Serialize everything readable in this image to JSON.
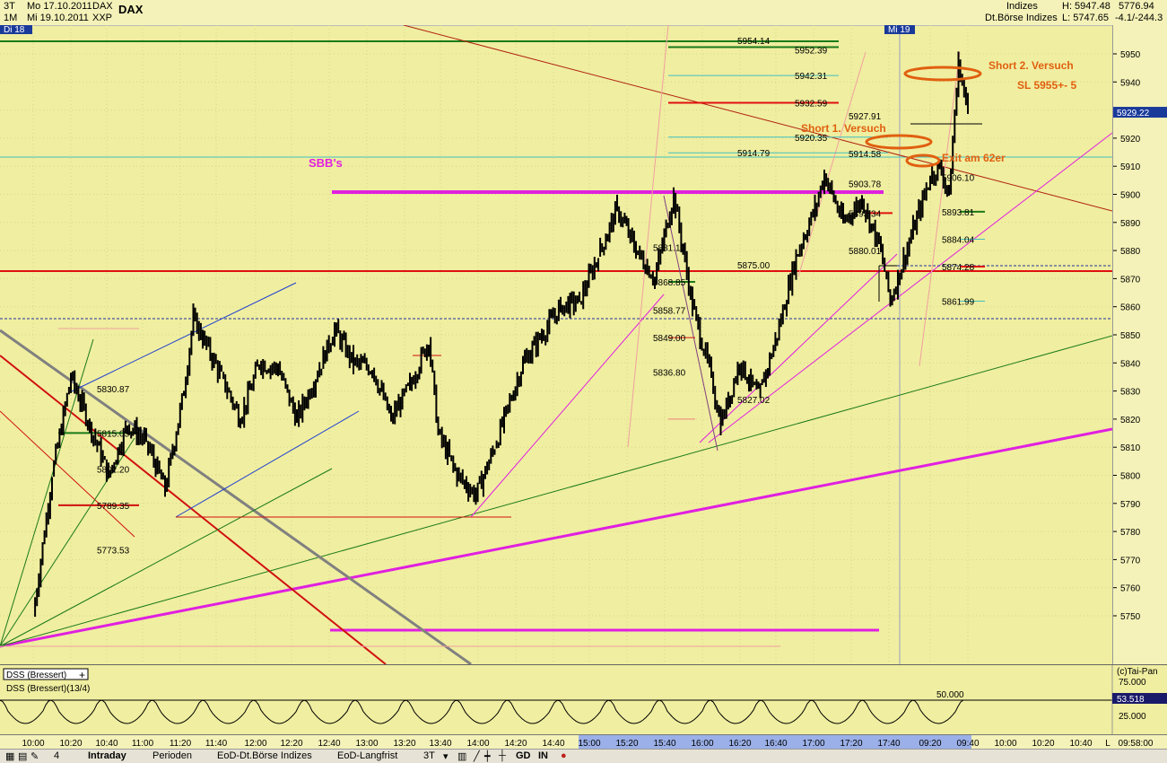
{
  "header": {
    "timeframe_1": "3T",
    "date_1": "Mo 17.10.2011",
    "symbol_1": "DAX",
    "title": "DAX",
    "timeframe_2": "1M",
    "date_2": "Mi 19.10.2011",
    "symbol_2": "XXP",
    "category": "Indizes",
    "exchange": "Dt.Börse Indizes",
    "high": "H: 5947.48",
    "low": "L: 5747.65",
    "last": "5776.94",
    "change": "-4.1/-244.3",
    "day_marker_1": "Di 18",
    "day_marker_2": "Mi 19"
  },
  "chart_data": {
    "type": "candlestick",
    "title": "DAX",
    "ylim": [
      5740,
      5960
    ],
    "y_ticks": [
      5750,
      5760,
      5770,
      5780,
      5790,
      5800,
      5810,
      5820,
      5830,
      5840,
      5850,
      5860,
      5870,
      5880,
      5890,
      5900,
      5910,
      5920,
      5930,
      5940,
      5950
    ],
    "current_price": "5929.22",
    "x_tick_labels": [
      "10:00",
      "10:20",
      "10:40",
      "11:00",
      "11:20",
      "11:40",
      "12:00",
      "12:20",
      "12:40",
      "13:00",
      "13:20",
      "13:40",
      "14:00",
      "14:20",
      "14:40",
      "15:00",
      "15:20",
      "15:40",
      "16:00",
      "16:20",
      "16:40",
      "17:00",
      "17:20",
      "17:40",
      "09:20",
      "09:40",
      "10:00",
      "10:20",
      "10:40",
      "L",
      "09:58:00"
    ],
    "price_path": [
      [
        "10:00",
        5750
      ],
      [
        "10:10",
        5800
      ],
      [
        "10:20",
        5835
      ],
      [
        "10:30",
        5818
      ],
      [
        "10:40",
        5800
      ],
      [
        "10:50",
        5818
      ],
      [
        "11:00",
        5812
      ],
      [
        "11:10",
        5795
      ],
      [
        "11:20",
        5830
      ],
      [
        "11:25",
        5856
      ],
      [
        "11:40",
        5835
      ],
      [
        "11:50",
        5820
      ],
      [
        "12:00",
        5840
      ],
      [
        "12:10",
        5838
      ],
      [
        "12:20",
        5820
      ],
      [
        "12:30",
        5835
      ],
      [
        "12:40",
        5852
      ],
      [
        "12:50",
        5840
      ],
      [
        "13:00",
        5838
      ],
      [
        "13:10",
        5820
      ],
      [
        "13:20",
        5832
      ],
      [
        "13:30",
        5848
      ],
      [
        "13:35",
        5815
      ],
      [
        "13:45",
        5800
      ],
      [
        "13:55",
        5793
      ],
      [
        "14:05",
        5810
      ],
      [
        "14:20",
        5840
      ],
      [
        "14:40",
        5860
      ],
      [
        "14:50",
        5862
      ],
      [
        "15:00",
        5878
      ],
      [
        "15:10",
        5895
      ],
      [
        "15:20",
        5880
      ],
      [
        "15:30",
        5870
      ],
      [
        "15:40",
        5900
      ],
      [
        "15:50",
        5860
      ],
      [
        "16:00",
        5835
      ],
      [
        "16:05",
        5818
      ],
      [
        "16:15",
        5840
      ],
      [
        "16:25",
        5828
      ],
      [
        "16:35",
        5850
      ],
      [
        "16:45",
        5878
      ],
      [
        "16:55",
        5895
      ],
      [
        "17:00",
        5907
      ],
      [
        "17:10",
        5890
      ],
      [
        "17:20",
        5898
      ],
      [
        "17:30",
        5880
      ],
      [
        "17:35",
        5862
      ],
      [
        "09:20",
        5906
      ],
      [
        "09:25",
        5910
      ],
      [
        "09:30",
        5900
      ],
      [
        "09:35",
        5947
      ],
      [
        "09:40",
        5929
      ]
    ],
    "horizontal_levels": [
      "5954.14",
      "5952.39",
      "5942.31",
      "5932.59",
      "5927.91",
      "5920.35",
      "5914.79",
      "5914.58",
      "5906.10",
      "5903.78",
      "5893.81",
      "5893.34",
      "5884.04",
      "5881.10",
      "5880.01",
      "5875.00",
      "5874.28",
      "5868.85",
      "5861.99",
      "5858.77",
      "5849.00",
      "5836.80",
      "5830.87",
      "5827.02",
      "5815.05",
      "5802.20",
      "5789.35",
      "5773.53"
    ],
    "annotations": [
      "SBB's",
      "Short 1. Versuch",
      "Short 2. Versuch",
      "SL 5955+- 5",
      "Exit am 62er"
    ],
    "indicator": {
      "name": "DSS (Bressert)",
      "full_name": "DSS (Bressert)(13/4)",
      "value": "53.518",
      "level_label": "50.000",
      "y_ticks": [
        "75.000",
        "25.000"
      ],
      "credit": "(c)Tai-Pan"
    }
  },
  "toolbar": {
    "tab_intraday": "Intraday",
    "tab_perioden": "Perioden",
    "tab_eod_dt": "EoD-Dt.Börse Indizes",
    "tab_eod_lang": "EoD-Langfrist",
    "interval": "3T",
    "btn_gd": "GD",
    "btn_in": "IN"
  }
}
